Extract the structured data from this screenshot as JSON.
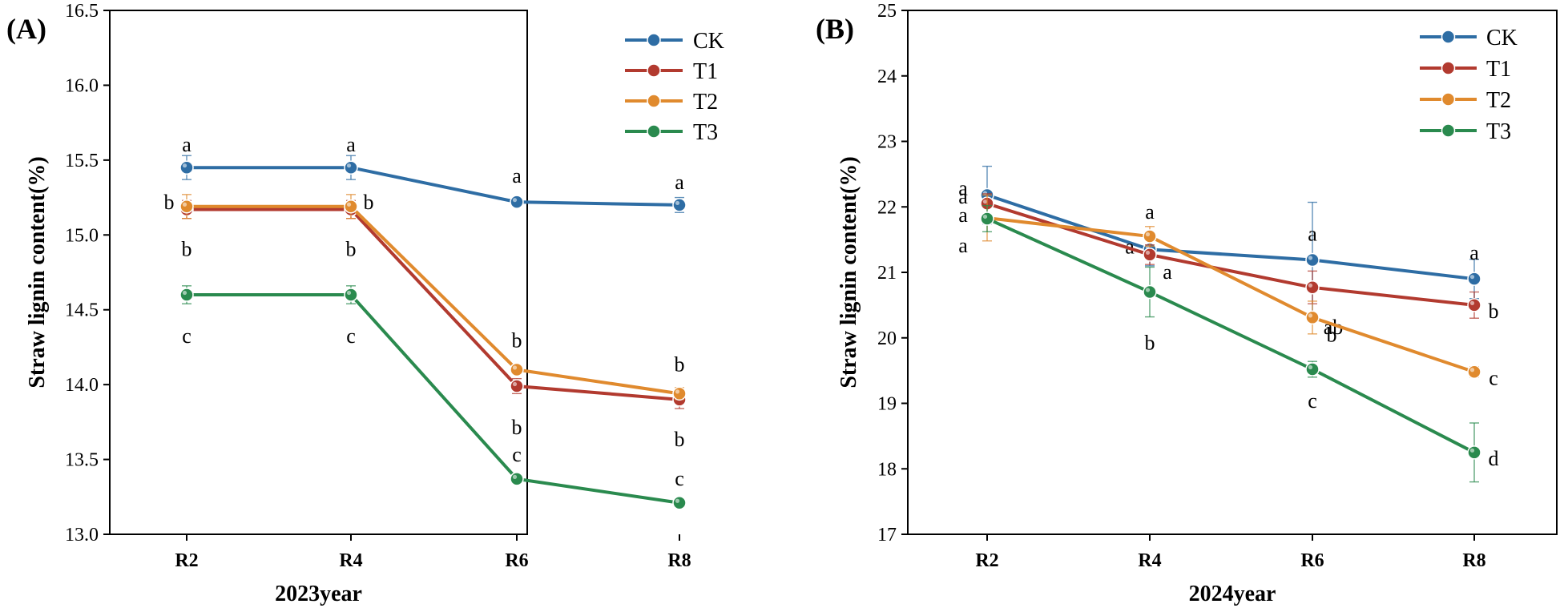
{
  "chart_data": [
    {
      "type": "line",
      "panel_label": "(A)",
      "xlabel": "2023year",
      "ylabel": "Straw lignin content(%)",
      "categories": [
        "R2",
        "R4",
        "R6",
        "R8"
      ],
      "ylim": [
        13.0,
        16.5
      ],
      "yticks": [
        "13.0",
        "13.5",
        "14.0",
        "14.5",
        "15.0",
        "15.5",
        "16.0",
        "16.5"
      ],
      "legend": "top-right",
      "series": [
        {
          "name": "CK",
          "color": "#2e6da4",
          "values": [
            15.45,
            15.45,
            15.22,
            15.2
          ],
          "errors": [
            0.08,
            0.08,
            0.02,
            0.05
          ],
          "letters": [
            "a",
            "a",
            "a",
            "a"
          ]
        },
        {
          "name": "T1",
          "color": "#b23a2f",
          "values": [
            15.17,
            15.17,
            13.99,
            13.9
          ],
          "errors": [
            0.06,
            0.06,
            0.05,
            0.06
          ],
          "letters": [
            "b",
            "b",
            "b",
            "b"
          ]
        },
        {
          "name": "T2",
          "color": "#e08a2e",
          "values": [
            15.19,
            15.19,
            14.1,
            13.94
          ],
          "errors": [
            0.08,
            0.08,
            0.03,
            0.04
          ],
          "letters": [
            "b",
            "b",
            "b",
            "b"
          ]
        },
        {
          "name": "T3",
          "color": "#2a8a4e",
          "values": [
            14.6,
            14.6,
            13.37,
            13.21
          ],
          "errors": [
            0.06,
            0.06,
            0.02,
            0.02
          ],
          "letters": [
            "c",
            "c",
            "c",
            "c"
          ]
        }
      ]
    },
    {
      "type": "line",
      "panel_label": "(B)",
      "xlabel": "2024year",
      "ylabel": "Straw lignin content(%)",
      "categories": [
        "R2",
        "R4",
        "R6",
        "R8"
      ],
      "ylim": [
        17,
        25
      ],
      "yticks": [
        "17",
        "18",
        "19",
        "20",
        "21",
        "22",
        "23",
        "24",
        "25"
      ],
      "legend": "top-right",
      "series": [
        {
          "name": "CK",
          "color": "#2e6da4",
          "values": [
            22.18,
            21.35,
            21.19,
            20.9
          ],
          "errors": [
            0.44,
            0.25,
            0.88,
            0.3
          ],
          "letters": [
            "a",
            "a",
            "a",
            "a"
          ]
        },
        {
          "name": "T1",
          "color": "#b23a2f",
          "values": [
            22.05,
            21.27,
            20.77,
            20.5
          ],
          "errors": [
            0.15,
            0.15,
            0.25,
            0.2
          ],
          "letters": [
            "a",
            "a",
            "ab",
            "b"
          ]
        },
        {
          "name": "T2",
          "color": "#e08a2e",
          "values": [
            21.83,
            21.55,
            20.31,
            19.48
          ],
          "errors": [
            0.35,
            0.15,
            0.25,
            0.08
          ],
          "letters": [
            "a",
            "a",
            "b",
            "c"
          ]
        },
        {
          "name": "T3",
          "color": "#2a8a4e",
          "values": [
            21.82,
            20.7,
            19.52,
            18.25
          ],
          "errors": [
            0.2,
            0.38,
            0.12,
            0.45
          ],
          "letters": [
            "a",
            "b",
            "c",
            "d"
          ]
        }
      ]
    }
  ]
}
